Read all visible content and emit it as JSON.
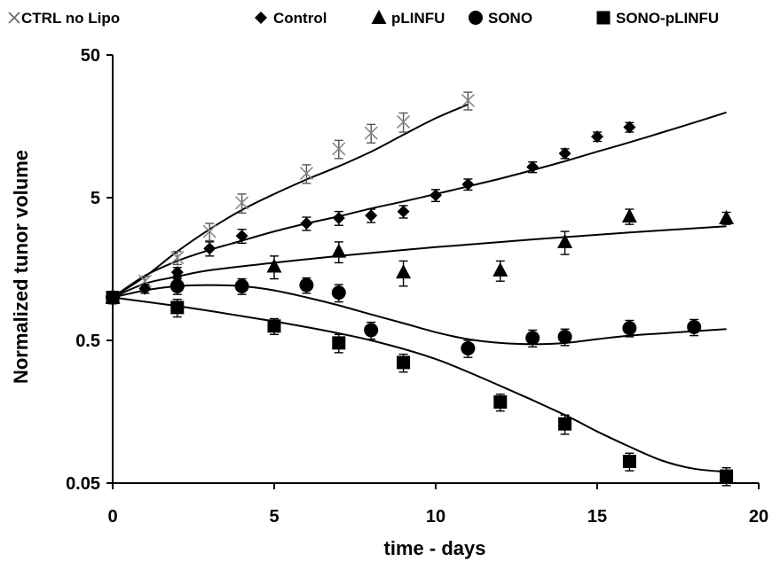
{
  "chart_data": {
    "type": "scatter",
    "xlabel": "time - days",
    "ylabel": "Normalized tunor volume",
    "xlim": [
      0,
      20
    ],
    "ylim": [
      0.05,
      50
    ],
    "yscale": "log",
    "xticks": [
      "0",
      "5",
      "10",
      "15",
      "20"
    ],
    "yticks": [
      "0.05",
      "0.5",
      "5",
      "50"
    ],
    "legend_position": "top",
    "grid": false,
    "series": [
      {
        "name": "CTRL no Lipo",
        "marker": "x",
        "color": "#888888",
        "x": [
          0,
          1,
          2,
          3,
          4,
          6,
          7,
          8,
          9,
          11
        ],
        "y": [
          1.0,
          1.3,
          1.9,
          2.9,
          4.6,
          7.4,
          11.0,
          14.2,
          17.0,
          24.0
        ],
        "err": [
          0.1,
          0.1,
          0.2,
          0.4,
          0.7,
          1.1,
          1.6,
          2.1,
          2.6,
          3.4
        ],
        "fit": [
          [
            0,
            1.0
          ],
          [
            1,
            1.4
          ],
          [
            2,
            2.1
          ],
          [
            3,
            3.0
          ],
          [
            4,
            4.1
          ],
          [
            5,
            5.3
          ],
          [
            6,
            6.7
          ],
          [
            7,
            8.3
          ],
          [
            8,
            10.5
          ],
          [
            9,
            13.8
          ],
          [
            10,
            18.0
          ],
          [
            11,
            22.5
          ]
        ]
      },
      {
        "name": "Control",
        "marker": "diamond",
        "color": "#000000",
        "x": [
          0,
          1,
          2,
          3,
          4,
          6,
          7,
          8,
          9,
          10,
          11,
          13,
          14,
          15,
          16
        ],
        "y": [
          1.0,
          1.15,
          1.5,
          2.2,
          2.7,
          3.3,
          3.6,
          3.75,
          4.0,
          5.2,
          6.2,
          8.2,
          10.2,
          13.4,
          15.6
        ],
        "err": [
          0.08,
          0.08,
          0.12,
          0.25,
          0.3,
          0.35,
          0.4,
          0.4,
          0.4,
          0.5,
          0.55,
          0.7,
          0.8,
          1.0,
          1.2
        ],
        "fit": [
          [
            0,
            1.0
          ],
          [
            1,
            1.42
          ],
          [
            2,
            1.8
          ],
          [
            3,
            2.15
          ],
          [
            4,
            2.5
          ],
          [
            5,
            2.9
          ],
          [
            6,
            3.3
          ],
          [
            7,
            3.7
          ],
          [
            8,
            4.2
          ],
          [
            9,
            4.7
          ],
          [
            10,
            5.3
          ],
          [
            11,
            6.0
          ],
          [
            12,
            6.8
          ],
          [
            13,
            7.8
          ],
          [
            14,
            9.0
          ],
          [
            15,
            10.5
          ],
          [
            16,
            12.2
          ],
          [
            17,
            14.3
          ],
          [
            18,
            16.8
          ],
          [
            19,
            19.8
          ]
        ]
      },
      {
        "name": "pLINFU",
        "marker": "triangle",
        "color": "#000000",
        "x": [
          0,
          2,
          5,
          7,
          9,
          12,
          14,
          16,
          19
        ],
        "y": [
          1.0,
          1.3,
          1.65,
          2.1,
          1.5,
          1.55,
          2.45,
          3.7,
          3.6
        ],
        "err": [
          0.08,
          0.12,
          0.3,
          0.35,
          0.3,
          0.25,
          0.45,
          0.45,
          0.35
        ],
        "fit": [
          [
            0,
            1.0
          ],
          [
            1,
            1.25
          ],
          [
            2,
            1.4
          ],
          [
            3,
            1.55
          ],
          [
            5,
            1.75
          ],
          [
            7,
            1.95
          ],
          [
            10,
            2.25
          ],
          [
            13,
            2.55
          ],
          [
            16,
            2.85
          ],
          [
            19,
            3.15
          ]
        ]
      },
      {
        "name": "SONO",
        "marker": "circle",
        "color": "#000000",
        "x": [
          0,
          2,
          4,
          6,
          7,
          8,
          11,
          13,
          14,
          16,
          18
        ],
        "y": [
          1.0,
          1.2,
          1.2,
          1.22,
          1.08,
          0.59,
          0.44,
          0.52,
          0.53,
          0.61,
          0.62
        ],
        "err": [
          0.08,
          0.15,
          0.15,
          0.15,
          0.15,
          0.08,
          0.06,
          0.07,
          0.07,
          0.08,
          0.08
        ],
        "fit": [
          [
            0,
            1.0
          ],
          [
            1,
            1.12
          ],
          [
            2,
            1.2
          ],
          [
            3,
            1.22
          ],
          [
            4,
            1.2
          ],
          [
            5,
            1.12
          ],
          [
            6,
            1.0
          ],
          [
            7,
            0.88
          ],
          [
            8,
            0.76
          ],
          [
            9,
            0.66
          ],
          [
            10,
            0.57
          ],
          [
            11,
            0.51
          ],
          [
            12,
            0.48
          ],
          [
            13,
            0.47
          ],
          [
            14,
            0.48
          ],
          [
            15,
            0.51
          ],
          [
            16,
            0.54
          ],
          [
            17,
            0.56
          ],
          [
            18,
            0.58
          ],
          [
            19,
            0.6
          ]
        ]
      },
      {
        "name": "SONO-pLINFU",
        "marker": "square",
        "color": "#000000",
        "x": [
          0,
          2,
          5,
          7,
          9,
          12,
          14,
          16,
          19
        ],
        "y": [
          1.0,
          0.85,
          0.63,
          0.48,
          0.35,
          0.185,
          0.13,
          0.071,
          0.056
        ],
        "err": [
          0.08,
          0.12,
          0.08,
          0.07,
          0.05,
          0.025,
          0.02,
          0.01,
          0.008
        ],
        "fit": [
          [
            0,
            1.0
          ],
          [
            2,
            0.87
          ],
          [
            4,
            0.74
          ],
          [
            6,
            0.62
          ],
          [
            8,
            0.5
          ],
          [
            10,
            0.37
          ],
          [
            12,
            0.24
          ],
          [
            14,
            0.15
          ],
          [
            15,
            0.115
          ],
          [
            16,
            0.09
          ],
          [
            17,
            0.072
          ],
          [
            18,
            0.063
          ],
          [
            19,
            0.06
          ]
        ]
      }
    ]
  }
}
